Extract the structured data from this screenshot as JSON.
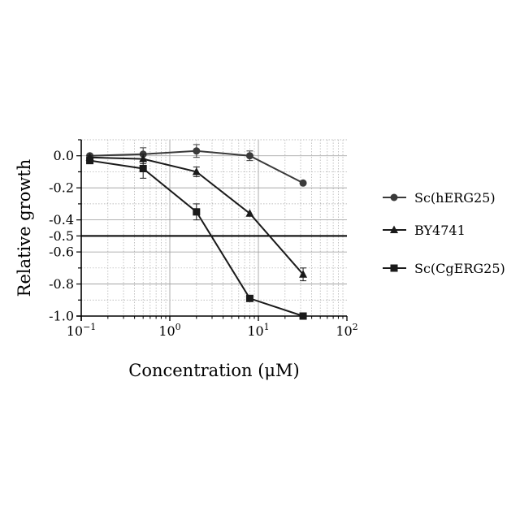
{
  "chart_data": {
    "type": "line",
    "title": "",
    "xlabel": "Concentration (μM)",
    "ylabel": "Relative growth",
    "x_scale": "log",
    "xlim": [
      0.1,
      100
    ],
    "ylim": [
      -1.0,
      0.1
    ],
    "grid": true,
    "legend_position": "right",
    "x_ticks": [
      {
        "value": 0.1,
        "base": "10",
        "exp": "−1"
      },
      {
        "value": 1,
        "base": "10",
        "exp": "0"
      },
      {
        "value": 10,
        "base": "10",
        "exp": "1"
      },
      {
        "value": 100,
        "base": "10",
        "exp": "2"
      }
    ],
    "y_ticks": [
      {
        "value": 0.0,
        "label": "0.0"
      },
      {
        "value": -0.2,
        "label": "-0.2"
      },
      {
        "value": -0.4,
        "label": "-0.4"
      },
      {
        "value": -0.5,
        "label": "-0.5"
      },
      {
        "value": -0.6,
        "label": "-0.6"
      },
      {
        "value": -0.8,
        "label": "-0.8"
      },
      {
        "value": -1.0,
        "label": "-1.0"
      }
    ],
    "reference_line": {
      "y": -0.5
    },
    "x": [
      0.125,
      0.5,
      2,
      8,
      32
    ],
    "series": [
      {
        "name": "Sc(hERG25)",
        "marker": "circle",
        "color": "#3a3a3a",
        "values": [
          0.0,
          0.01,
          0.03,
          0.0,
          -0.17
        ],
        "errors": [
          0.01,
          0.04,
          0.04,
          0.03,
          0.0
        ]
      },
      {
        "name": "BY4741",
        "marker": "triangle",
        "color": "#1a1a1a",
        "values": [
          -0.01,
          -0.02,
          -0.1,
          -0.36,
          -0.74
        ],
        "errors": [
          0.01,
          0.03,
          0.03,
          0.0,
          0.04
        ]
      },
      {
        "name": "Sc(CgERG25)",
        "marker": "square",
        "color": "#1a1a1a",
        "values": [
          -0.03,
          -0.08,
          -0.35,
          -0.89,
          -1.0
        ],
        "errors": [
          0.01,
          0.06,
          0.05,
          0.0,
          0.0
        ]
      }
    ]
  }
}
